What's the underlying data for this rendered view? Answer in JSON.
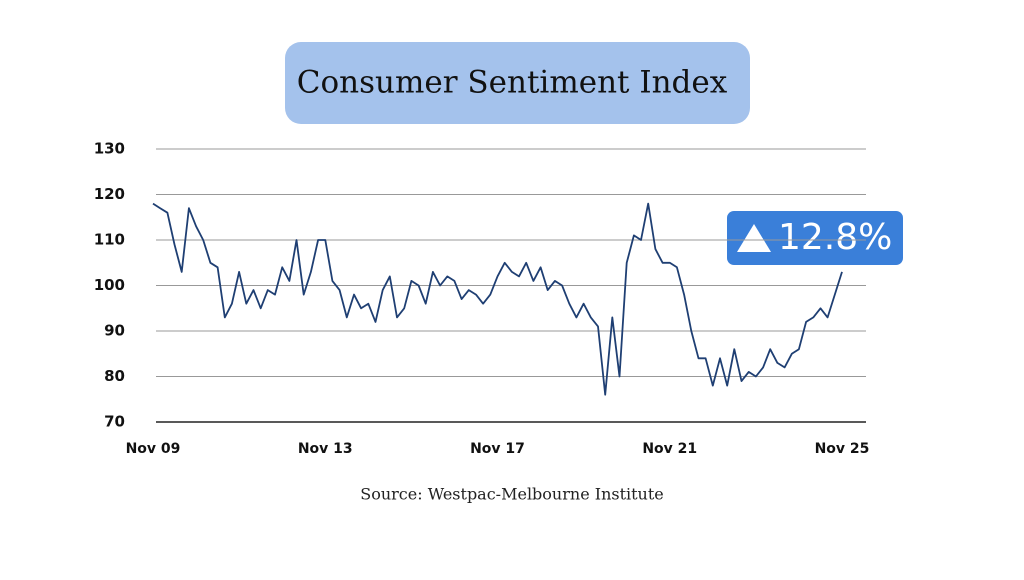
{
  "chart_data": {
    "type": "line",
    "title": "Consumer Sentiment Index",
    "source": "Source: Westpac-Melbourne Institute",
    "annotation": "12.8%",
    "x": [
      "Nov 09",
      "Jan 10",
      "Mar 10",
      "May 10",
      "Jul 10",
      "Sep 10",
      "Nov 10",
      "Jan 11",
      "Mar 11",
      "May 11",
      "Jul 11",
      "Sep 11",
      "Nov 11",
      "Jan 12",
      "Mar 12",
      "May 12",
      "Jul 12",
      "Sep 12",
      "Nov 12",
      "Jan 13",
      "Mar 13",
      "May 13",
      "Jul 13",
      "Sep 13",
      "Nov 13",
      "Jan 14",
      "Mar 14",
      "May 14",
      "Jul 14",
      "Sep 14",
      "Nov 14",
      "Jan 15",
      "Mar 15",
      "May 15",
      "Jul 15",
      "Sep 15",
      "Nov 15",
      "Jan 16",
      "Mar 16",
      "May 16",
      "Jul 16",
      "Sep 16",
      "Nov 16",
      "Jan 17",
      "Mar 17",
      "May 17",
      "Jul 17",
      "Sep 17",
      "Nov 17",
      "Jan 18",
      "Mar 18",
      "May 18",
      "Jul 18",
      "Sep 18",
      "Nov 18",
      "Jan 19",
      "Mar 19",
      "May 19",
      "Jul 19",
      "Sep 19",
      "Nov 19",
      "Jan 20",
      "Mar 20",
      "May 20",
      "Jul 20",
      "Sep 20",
      "Nov 20",
      "Jan 21",
      "Mar 21",
      "May 21",
      "Jul 21",
      "Sep 21",
      "Nov 21",
      "Jan 22",
      "Mar 22",
      "May 22",
      "Jul 22",
      "Sep 22",
      "Nov 22",
      "Jan 23",
      "Mar 23",
      "May 23",
      "Jul 23",
      "Sep 23",
      "Nov 23",
      "Jan 24",
      "Mar 24",
      "May 24",
      "Jul 24",
      "Sep 24",
      "Nov 24",
      "Jan 25",
      "Mar 25",
      "May 25",
      "Jul 25",
      "Sep 25",
      "Nov 25"
    ],
    "series": [
      {
        "color": "#1f3f73",
        "values": [
          118,
          117,
          116,
          109,
          103,
          117,
          113,
          110,
          105,
          104,
          93,
          96,
          103,
          96,
          99,
          95,
          99,
          98,
          104,
          101,
          110,
          98,
          103,
          110,
          110,
          101,
          99,
          93,
          98,
          95,
          96,
          92,
          99,
          102,
          93,
          95,
          101,
          100,
          96,
          103,
          100,
          102,
          101,
          97,
          99,
          98,
          96,
          98,
          102,
          105,
          103,
          102,
          105,
          101,
          104,
          99,
          101,
          100,
          96,
          93,
          96,
          93,
          91,
          76,
          93,
          80,
          105,
          111,
          110,
          118,
          108,
          105,
          105,
          104,
          98,
          90,
          84,
          84,
          78,
          84,
          78,
          86,
          79,
          81,
          80,
          82,
          86,
          83,
          82,
          85,
          86,
          92,
          93,
          95,
          93,
          98,
          103
        ]
      }
    ],
    "xticks": [
      "Nov 09",
      "Nov 13",
      "Nov 17",
      "Nov 21",
      "Nov 25"
    ],
    "ylim": [
      70,
      130
    ],
    "yticks": [
      70,
      80,
      90,
      100,
      110,
      120,
      130
    ],
    "grid": true
  }
}
